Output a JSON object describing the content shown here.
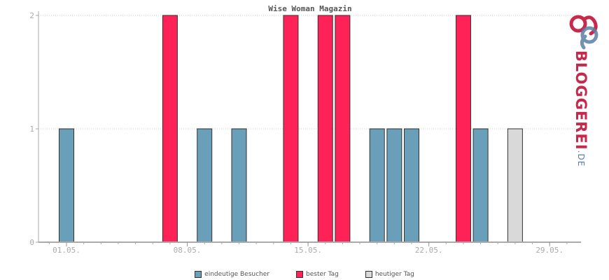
{
  "chart_data": {
    "type": "bar",
    "title": "Wise Woman Magazin",
    "xlabel": "",
    "ylabel": "",
    "ylim": [
      0,
      2
    ],
    "yticks": [
      0,
      1,
      2
    ],
    "x_start": "2024-05-01",
    "x_tick_labels": [
      "01.05.",
      "08.05.",
      "15.05.",
      "22.05.",
      "29.05."
    ],
    "x_tick_positions": [
      1,
      8,
      15,
      22,
      29
    ],
    "grid": true,
    "legend_position": "bottom-center",
    "bars": [
      {
        "day": 1,
        "value": 1,
        "series": "eindeutige Besucher"
      },
      {
        "day": 7,
        "value": 2,
        "series": "bester Tag"
      },
      {
        "day": 9,
        "value": 1,
        "series": "eindeutige Besucher"
      },
      {
        "day": 11,
        "value": 1,
        "series": "eindeutige Besucher"
      },
      {
        "day": 14,
        "value": 2,
        "series": "bester Tag"
      },
      {
        "day": 16,
        "value": 2,
        "series": "bester Tag"
      },
      {
        "day": 17,
        "value": 2,
        "series": "bester Tag"
      },
      {
        "day": 19,
        "value": 1,
        "series": "eindeutige Besucher"
      },
      {
        "day": 20,
        "value": 1,
        "series": "eindeutige Besucher"
      },
      {
        "day": 21,
        "value": 1,
        "series": "eindeutige Besucher"
      },
      {
        "day": 24,
        "value": 2,
        "series": "bester Tag"
      },
      {
        "day": 25,
        "value": 1,
        "series": "eindeutige Besucher"
      },
      {
        "day": 27,
        "value": 1,
        "series": "heutiger Tag"
      }
    ],
    "series": [
      {
        "name": "eindeutige Besucher",
        "color": "#6a9fb9"
      },
      {
        "name": "bester Tag",
        "color": "#ff2256"
      },
      {
        "name": "heutiger Tag",
        "color": "#d9d9d9"
      }
    ]
  },
  "logo": {
    "main": "BLOGGEREI",
    "suffix": ".DE"
  }
}
